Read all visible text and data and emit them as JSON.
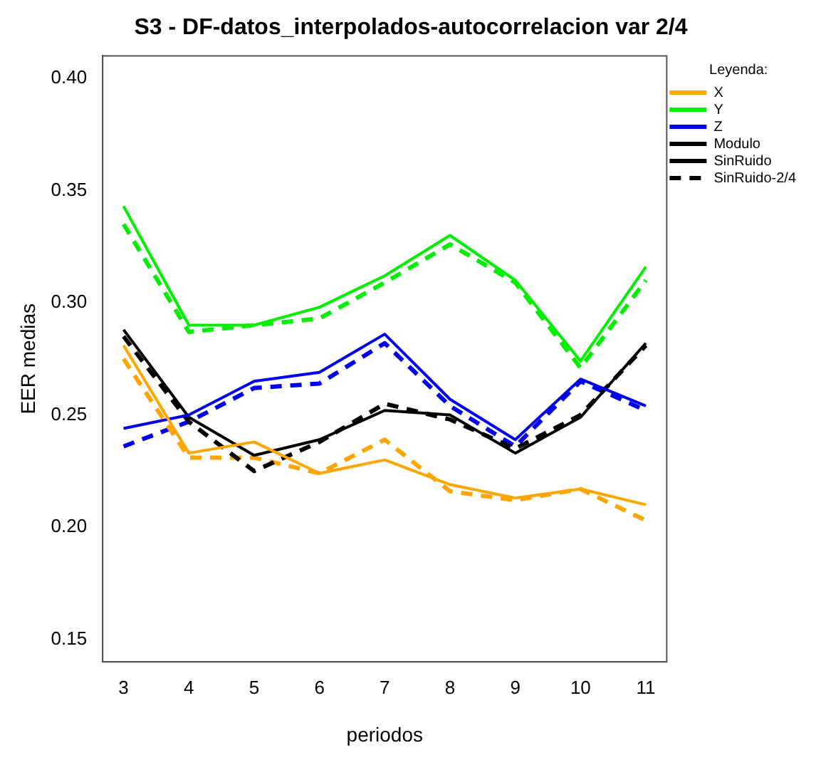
{
  "chart_data": {
    "type": "line",
    "title": "S3 - DF-datos_interpolados-autocorrelacion var 2/4",
    "xlabel": "periodos",
    "ylabel": "EER medias",
    "legend_title": "Leyenda:",
    "x": [
      3,
      4,
      5,
      6,
      7,
      8,
      9,
      10,
      11
    ],
    "xlim": [
      2.68,
      11.32
    ],
    "xticks": [
      3,
      4,
      5,
      6,
      7,
      8,
      9,
      10,
      11
    ],
    "ylim": [
      0.14,
      0.41
    ],
    "yticks": [
      0.15,
      {
        "value": 0.2,
        "label": "0.20"
      },
      0.25,
      {
        "value": 0.3,
        "label": "0.30"
      },
      0.35,
      {
        "value": 0.4,
        "label": "0.40"
      }
    ],
    "grid": false,
    "legend": "right",
    "marker": "none",
    "series": [
      {
        "name": "X",
        "color": "#ffa500",
        "line_style": "solid",
        "values": [
          0.281,
          0.233,
          0.238,
          0.224,
          0.23,
          0.219,
          0.213,
          0.217,
          0.21
        ]
      },
      {
        "name": "Y",
        "color": "#00ee00",
        "line_style": "solid",
        "values": [
          0.343,
          0.29,
          0.29,
          0.298,
          0.312,
          0.33,
          0.31,
          0.274,
          0.316
        ]
      },
      {
        "name": "Z",
        "color": "#0000ee",
        "line_style": "solid",
        "values": [
          0.244,
          0.25,
          0.265,
          0.269,
          0.286,
          0.257,
          0.239,
          0.266,
          0.254
        ]
      },
      {
        "name": "Modulo",
        "color": "#000000",
        "line_style": "solid",
        "values": [
          0.288,
          0.249,
          0.232,
          0.239,
          0.252,
          0.25,
          0.233,
          0.249,
          0.282
        ]
      },
      {
        "name": "SinRuido",
        "color": "#000000",
        "line_style": "solid",
        "values": [
          null,
          null,
          null,
          null,
          null,
          null,
          null,
          null,
          null
        ]
      },
      {
        "name": "SinRuido-2/4",
        "color": "#000000",
        "line_style": "dashed",
        "values": [
          0.285,
          0.247,
          0.225,
          0.238,
          0.255,
          0.248,
          0.235,
          0.25,
          0.281
        ]
      },
      {
        "color": "#ffa500",
        "line_style": "dashed",
        "values": [
          0.275,
          0.231,
          0.231,
          0.224,
          0.239,
          0.216,
          0.212,
          0.217,
          0.203
        ]
      },
      {
        "color": "#00ee00",
        "line_style": "dashed",
        "values": [
          0.335,
          0.287,
          0.29,
          0.293,
          0.309,
          0.326,
          0.309,
          0.271,
          0.31
        ]
      },
      {
        "color": "#0000ee",
        "line_style": "dashed",
        "values": [
          0.236,
          0.247,
          0.262,
          0.264,
          0.282,
          0.254,
          0.236,
          0.265,
          0.252
        ]
      }
    ]
  }
}
